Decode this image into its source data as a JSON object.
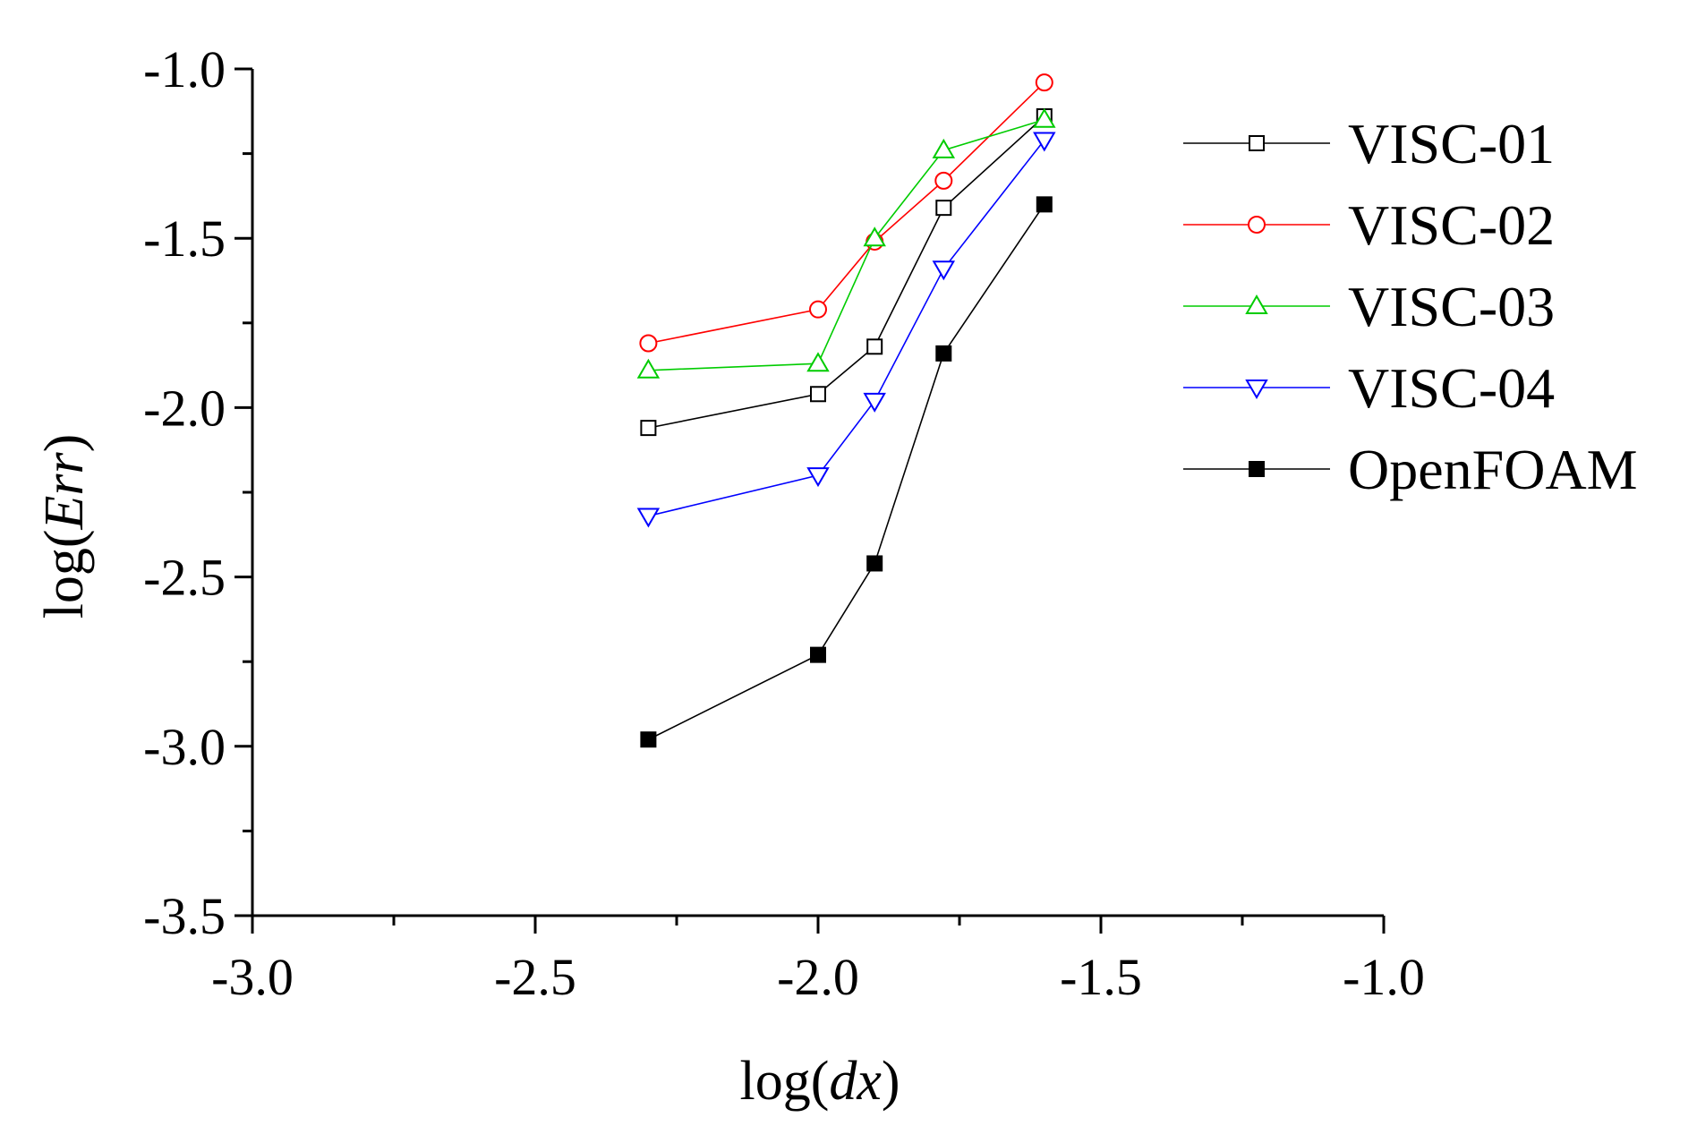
{
  "chart_data": {
    "type": "line",
    "xlabel": {
      "prefix": "log(",
      "var": "dx",
      "suffix": ")"
    },
    "ylabel": {
      "prefix": "log(",
      "var": "Err",
      "suffix": ")"
    },
    "xlim": [
      -3.0,
      -1.0
    ],
    "ylim": [
      -3.5,
      -1.0
    ],
    "x_major_ticks": [
      -3.0,
      -2.5,
      -2.0,
      -1.5,
      -1.0
    ],
    "x_tick_labels": [
      "-3.0",
      "-2.5",
      "-2.0",
      "-1.5",
      "-1.0"
    ],
    "x_minor_ticks": [
      -2.75,
      -2.25,
      -1.75,
      -1.25
    ],
    "y_major_ticks": [
      -3.5,
      -3.0,
      -2.5,
      -2.0,
      -1.5,
      -1.0
    ],
    "y_tick_labels": [
      "-3.5",
      "-3.0",
      "-2.5",
      "-2.0",
      "-1.5",
      "-1.0"
    ],
    "y_minor_ticks": [
      -3.25,
      -2.75,
      -2.25,
      -1.75,
      -1.25
    ],
    "grid": false,
    "legend_position": "top-right",
    "x": [
      -2.3,
      -2.0,
      -1.9,
      -1.778,
      -1.6
    ],
    "series": [
      {
        "name": "VISC-01",
        "color": "#000000",
        "marker": "square-open",
        "y": [
          -2.06,
          -1.96,
          -1.82,
          -1.41,
          -1.14
        ]
      },
      {
        "name": "VISC-02",
        "color": "#ff0000",
        "marker": "circle-open",
        "y": [
          -1.81,
          -1.71,
          -1.51,
          -1.33,
          -1.04
        ]
      },
      {
        "name": "VISC-03",
        "color": "#00cc00",
        "marker": "triangle-up-open",
        "y": [
          -1.89,
          -1.87,
          -1.5,
          -1.24,
          -1.15
        ]
      },
      {
        "name": "VISC-04",
        "color": "#0000ff",
        "marker": "triangle-down-open",
        "y": [
          -2.32,
          -2.2,
          -1.98,
          -1.59,
          -1.21
        ]
      },
      {
        "name": "OpenFOAM",
        "color": "#000000",
        "marker": "square-filled",
        "y": [
          -2.98,
          -2.73,
          -2.46,
          -1.84,
          -1.4
        ]
      }
    ]
  }
}
